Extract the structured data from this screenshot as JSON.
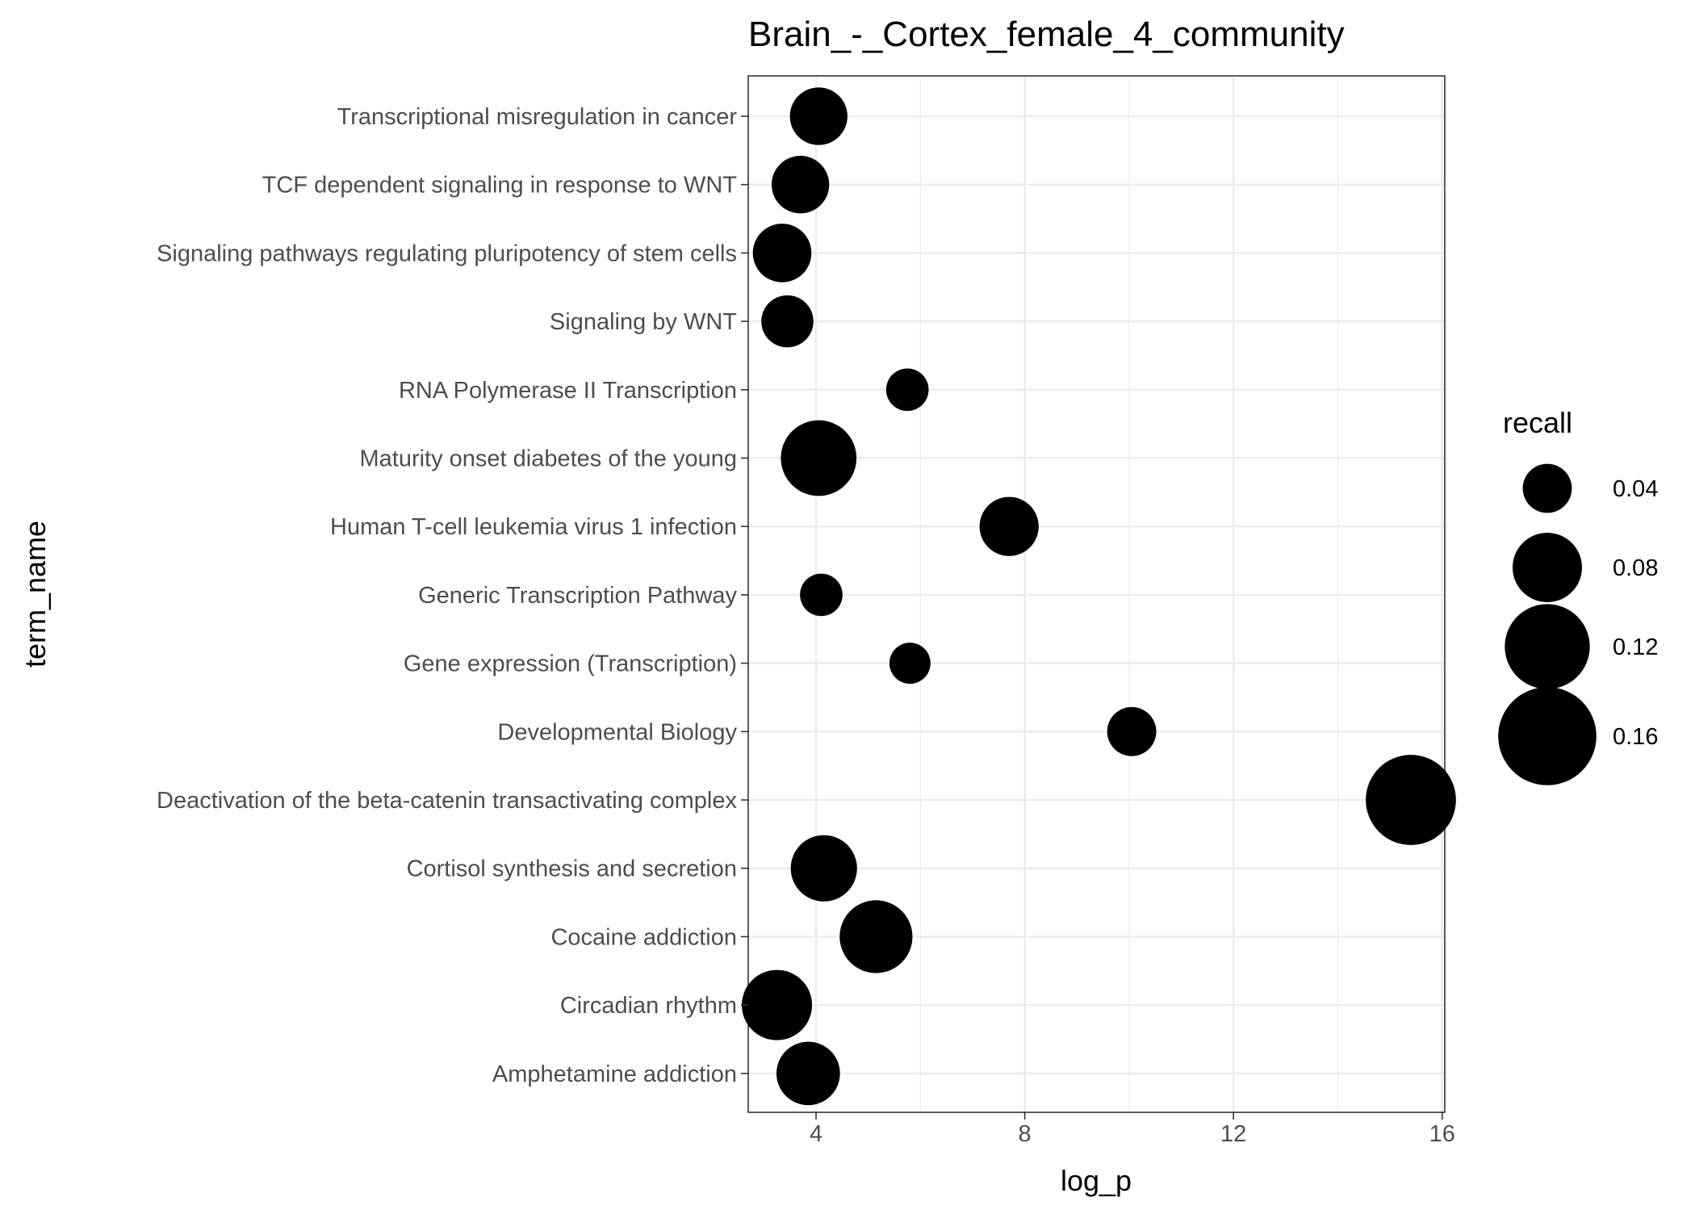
{
  "chart_data": {
    "type": "scatter",
    "title": "Brain_-_Cortex_female_4_community",
    "xlabel": "log_p",
    "ylabel": "term_name",
    "xlim": [
      2.7,
      16.05
    ],
    "xticks": [
      4,
      8,
      12,
      16
    ],
    "xtick_labels": [
      "4",
      "8",
      "12",
      "16"
    ],
    "categories": [
      "Transcriptional misregulation in cancer",
      "TCF dependent signaling in response to WNT",
      "Signaling pathways regulating pluripotency of stem cells",
      "Signaling by WNT",
      "RNA Polymerase II Transcription",
      "Maturity onset diabetes of the young",
      "Human T-cell leukemia virus 1 infection",
      "Generic Transcription Pathway",
      "Gene expression (Transcription)",
      "Developmental Biology",
      "Deactivation of the beta-catenin transactivating complex",
      "Cortisol synthesis and secretion",
      "Cocaine addiction",
      "Circadian rhythm",
      "Amphetamine addiction"
    ],
    "points": [
      {
        "term": "Transcriptional misregulation in cancer",
        "log_p": 4.05,
        "recall": 0.055
      },
      {
        "term": "TCF dependent signaling in response to WNT",
        "log_p": 3.7,
        "recall": 0.055
      },
      {
        "term": "Signaling pathways regulating pluripotency of stem cells",
        "log_p": 3.35,
        "recall": 0.057
      },
      {
        "term": "Signaling by WNT",
        "log_p": 3.45,
        "recall": 0.045
      },
      {
        "term": "RNA Polymerase II Transcription",
        "log_p": 5.75,
        "recall": 0.03
      },
      {
        "term": "Maturity onset diabetes of the young",
        "log_p": 4.05,
        "recall": 0.095
      },
      {
        "term": "Human T-cell leukemia virus 1 infection",
        "log_p": 7.7,
        "recall": 0.058
      },
      {
        "term": "Generic Transcription Pathway",
        "log_p": 4.1,
        "recall": 0.03
      },
      {
        "term": "Gene expression (Transcription)",
        "log_p": 5.8,
        "recall": 0.028
      },
      {
        "term": "Developmental Biology",
        "log_p": 10.05,
        "recall": 0.04
      },
      {
        "term": "Deactivation of the beta-catenin transactivating complex",
        "log_p": 15.4,
        "recall": 0.135
      },
      {
        "term": "Cortisol synthesis and secretion",
        "log_p": 4.15,
        "recall": 0.073
      },
      {
        "term": "Cocaine addiction",
        "log_p": 5.15,
        "recall": 0.088
      },
      {
        "term": "Circadian rhythm",
        "log_p": 3.25,
        "recall": 0.082
      },
      {
        "term": "Amphetamine addiction",
        "log_p": 3.85,
        "recall": 0.067
      }
    ],
    "legend": {
      "title": "recall",
      "placement": "right",
      "values": [
        0.04,
        0.08,
        0.12,
        0.16
      ],
      "labels": [
        "0.04",
        "0.08",
        "0.12",
        "0.16"
      ]
    },
    "grid": true,
    "point_color": "#000000",
    "grid_color": "#ebebeb",
    "tick_label_color": "#4d4d4d"
  }
}
